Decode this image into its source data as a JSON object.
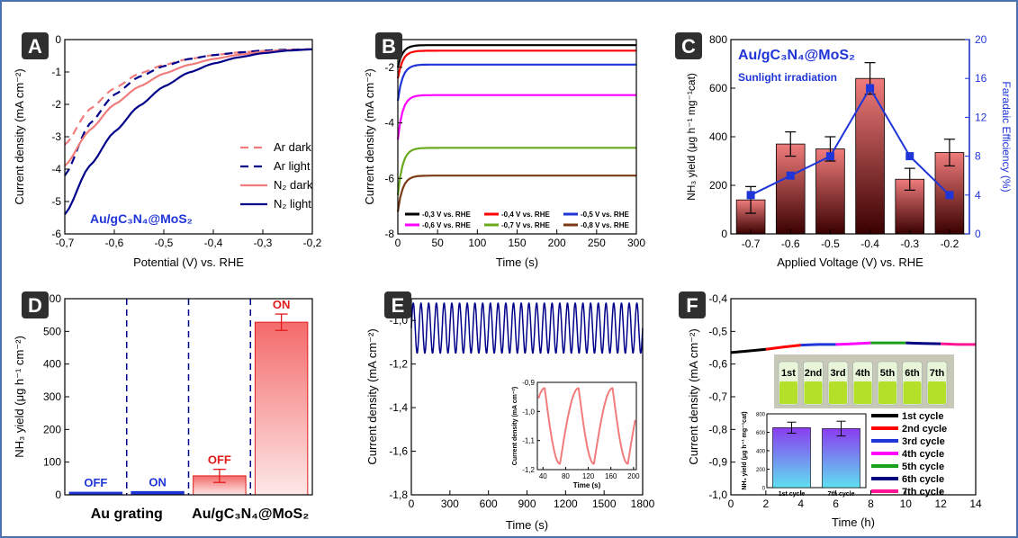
{
  "colors": {
    "badge": "#2f2f2f",
    "axis": "#000000",
    "blue": "#1f35d8",
    "salmon": "#f07c7c",
    "darkred": "#3a0000",
    "red": "#e01b1b",
    "navy": "#00008b"
  },
  "chart_data": [
    {
      "panel": "A",
      "type": "line",
      "xlabel": "Potential (V) vs. RHE",
      "ylabel": "Current density (mA cm⁻²)",
      "xlim": [
        -0.7,
        -0.2
      ],
      "ylim": [
        -6,
        0
      ],
      "xticks": [
        -0.7,
        -0.6,
        -0.5,
        -0.4,
        -0.3,
        -0.2
      ],
      "xtick_labels": [
        "-0,7",
        "-0,6",
        "-0,5",
        "-0,4",
        "-0,3",
        "-0,2"
      ],
      "yticks": [
        0,
        -1,
        -2,
        -3,
        -4,
        -5,
        -6
      ],
      "ytick_labels": [
        "0",
        "-1",
        "-2",
        "-3",
        "-4",
        "-5",
        "-6"
      ],
      "annotation": "Au/gC₃N₄@MoS₂",
      "legend_position": "bottom-right",
      "series": [
        {
          "name": "Ar dark",
          "color": "#f07c7c",
          "dash": true,
          "x": [
            -0.7,
            -0.65,
            -0.6,
            -0.55,
            -0.5,
            -0.45,
            -0.4,
            -0.35,
            -0.3,
            -0.25,
            -0.2
          ],
          "y": [
            -3.25,
            -2.15,
            -1.5,
            -1.05,
            -0.78,
            -0.6,
            -0.48,
            -0.4,
            -0.35,
            -0.32,
            -0.3
          ]
        },
        {
          "name": "Ar light",
          "color": "#00008b",
          "dash": true,
          "x": [
            -0.7,
            -0.65,
            -0.6,
            -0.55,
            -0.5,
            -0.45,
            -0.4,
            -0.35,
            -0.3,
            -0.25,
            -0.2
          ],
          "y": [
            -4.2,
            -2.6,
            -1.7,
            -1.15,
            -0.82,
            -0.6,
            -0.48,
            -0.4,
            -0.34,
            -0.31,
            -0.3
          ]
        },
        {
          "name": "N₂ dark",
          "color": "#f07c7c",
          "dash": false,
          "x": [
            -0.7,
            -0.65,
            -0.6,
            -0.55,
            -0.5,
            -0.45,
            -0.4,
            -0.35,
            -0.3,
            -0.25,
            -0.2
          ],
          "y": [
            -3.9,
            -2.8,
            -2.0,
            -1.45,
            -1.05,
            -0.78,
            -0.6,
            -0.47,
            -0.38,
            -0.33,
            -0.3
          ]
        },
        {
          "name": "N₂ light",
          "color": "#00008b",
          "dash": false,
          "x": [
            -0.7,
            -0.65,
            -0.6,
            -0.55,
            -0.5,
            -0.45,
            -0.4,
            -0.35,
            -0.3,
            -0.25,
            -0.2
          ],
          "y": [
            -5.4,
            -3.9,
            -2.85,
            -2.05,
            -1.45,
            -1.02,
            -0.74,
            -0.55,
            -0.42,
            -0.34,
            -0.3
          ]
        }
      ]
    },
    {
      "panel": "B",
      "type": "line",
      "xlabel": "Time (s)",
      "ylabel": "Current density (mA cm⁻²)",
      "xlim": [
        0,
        300
      ],
      "ylim": [
        -8,
        -1
      ],
      "xticks": [
        0,
        50,
        100,
        150,
        200,
        250,
        300
      ],
      "yticks": [
        -2,
        -4,
        -6,
        -8
      ],
      "legend_position": "bottom",
      "series": [
        {
          "name": "-0,3 V vs. RHE",
          "color": "#000000",
          "start": -2.0,
          "steady": -1.2
        },
        {
          "name": "-0,4 V vs. RHE",
          "color": "#ff0000",
          "start": -2.4,
          "steady": -1.4
        },
        {
          "name": "-0,5 V vs. RHE",
          "color": "#1f35d8",
          "start": -3.2,
          "steady": -1.9
        },
        {
          "name": "-0,6 V vs. RHE",
          "color": "#ff00ff",
          "start": -4.6,
          "steady": -3.0
        },
        {
          "name": "-0,7 V vs. RHE",
          "color": "#6aaa1e",
          "start": -6.6,
          "steady": -4.9
        },
        {
          "name": "-0,8 V vs. RHE",
          "color": "#7b3a14",
          "start": -7.2,
          "steady": -5.9
        }
      ]
    },
    {
      "panel": "C",
      "type": "bar",
      "xlabel": "Applied Voltage (V) vs. RHE",
      "ylabel": "NH₃ yield (μg h⁻¹ mg⁻¹cat)",
      "ylabel2": "Faradaic Efficiency (%)",
      "categories": [
        "-0.7",
        "-0.6",
        "-0.5",
        "-0.4",
        "-0.3",
        "-0.2"
      ],
      "values": [
        140,
        370,
        350,
        640,
        225,
        335
      ],
      "errors": [
        55,
        50,
        50,
        65,
        45,
        55
      ],
      "ylim": [
        0,
        800
      ],
      "yticks": [
        0,
        200,
        400,
        600,
        800
      ],
      "ylim2": [
        0,
        20
      ],
      "yticks2": [
        0,
        4,
        8,
        12,
        16,
        20
      ],
      "fe_values": [
        4,
        6,
        8,
        15,
        8,
        4
      ],
      "annotation": "Au/gC₃N₄@MoS₂",
      "annotation2": "Sunlight irradiation"
    },
    {
      "panel": "D",
      "type": "bar",
      "ylabel": "NH₃ yield (μg h⁻¹ cm⁻²)",
      "ylim": [
        0,
        600
      ],
      "yticks": [
        0,
        100,
        200,
        300,
        400,
        500,
        600
      ],
      "group_labels": [
        "Au grating",
        "Au/gC₃N₄@MoS₂"
      ],
      "bars": [
        {
          "label": "OFF",
          "value": 8,
          "error": 0,
          "color": "#1f35d8"
        },
        {
          "label": "ON",
          "value": 10,
          "error": 0,
          "color": "#1f35d8"
        },
        {
          "label": "OFF",
          "value": 58,
          "error": 20,
          "color": "#e01b1b"
        },
        {
          "label": "ON",
          "value": 528,
          "error": 25,
          "color": "#e01b1b"
        }
      ]
    },
    {
      "panel": "E",
      "type": "line",
      "xlabel": "Time (s)",
      "ylabel": "Current density (mA cm⁻²)",
      "xlim": [
        0,
        1800
      ],
      "ylim": [
        -1.8,
        -0.9
      ],
      "xticks": [
        0,
        300,
        600,
        900,
        1200,
        1500,
        1800
      ],
      "yticks": [
        -1.0,
        -1.2,
        -1.4,
        -1.6,
        -1.8
      ],
      "ytick_labels": [
        "-1,0",
        "-1,2",
        "-1,4",
        "-1,6",
        "-1,8"
      ],
      "oscillation": {
        "upper": -0.92,
        "lower": -1.15,
        "period_s": 60
      },
      "inset": {
        "xlabel": "Time (s)",
        "ylabel": "Current density (mA cm⁻²)",
        "xlim": [
          30,
          205
        ],
        "ylim": [
          -1.2,
          -0.9
        ],
        "xticks": [
          40,
          80,
          120,
          160,
          200
        ],
        "yticks": [
          -0.9,
          -1.0,
          -1.1,
          -1.2
        ],
        "ytick_labels": [
          "-0,9",
          "-1,0",
          "-1,1",
          "-1,2"
        ],
        "color": "#f07c7c"
      }
    },
    {
      "panel": "F",
      "type": "line",
      "xlabel": "Time (h)",
      "ylabel": "Current density (mA cm⁻²)",
      "xlim": [
        0,
        14
      ],
      "ylim": [
        -1.0,
        -0.4
      ],
      "xticks": [
        0,
        2,
        4,
        6,
        8,
        10,
        12,
        14
      ],
      "yticks": [
        -0.4,
        -0.5,
        -0.6,
        -0.7,
        -0.8,
        -0.9,
        -1.0
      ],
      "ytick_labels": [
        "-0,4",
        "-0,5",
        "-0,6",
        "-0,7",
        "-0,8",
        "-0,9",
        "-1,0"
      ],
      "series": [
        {
          "name": "1st cycle",
          "color": "#000000",
          "x": [
            0,
            1,
            2
          ],
          "y": [
            -0.565,
            -0.56,
            -0.555
          ]
        },
        {
          "name": "2nd cycle",
          "color": "#ff0000",
          "x": [
            2,
            3,
            4
          ],
          "y": [
            -0.555,
            -0.548,
            -0.542
          ]
        },
        {
          "name": "3rd cycle",
          "color": "#1f35d8",
          "x": [
            4,
            5,
            6
          ],
          "y": [
            -0.542,
            -0.54,
            -0.54
          ]
        },
        {
          "name": "4th cycle",
          "color": "#ff00ff",
          "x": [
            6,
            7,
            8
          ],
          "y": [
            -0.54,
            -0.538,
            -0.535
          ]
        },
        {
          "name": "5th cycle",
          "color": "#1aa01a",
          "x": [
            8,
            9,
            10
          ],
          "y": [
            -0.535,
            -0.535,
            -0.535
          ]
        },
        {
          "name": "6th cycle",
          "color": "#000080",
          "x": [
            10,
            11,
            12
          ],
          "y": [
            -0.535,
            -0.537,
            -0.538
          ]
        },
        {
          "name": "7th cycle",
          "color": "#ff1493",
          "x": [
            12,
            13,
            14
          ],
          "y": [
            -0.538,
            -0.54,
            -0.54
          ]
        }
      ],
      "photo_labels": [
        "1st",
        "2nd",
        "3rd",
        "4th",
        "5th",
        "6th",
        "7th"
      ],
      "inset": {
        "ylabel": "NH₃ yield (μg h⁻¹ mg⁻¹cat)",
        "categories": [
          "1st cycle",
          "7th cycle"
        ],
        "values": [
          650,
          640
        ],
        "errors": [
          60,
          80
        ],
        "ylim": [
          0,
          800
        ],
        "yticks": [
          0,
          200,
          400,
          600,
          800
        ]
      }
    }
  ]
}
